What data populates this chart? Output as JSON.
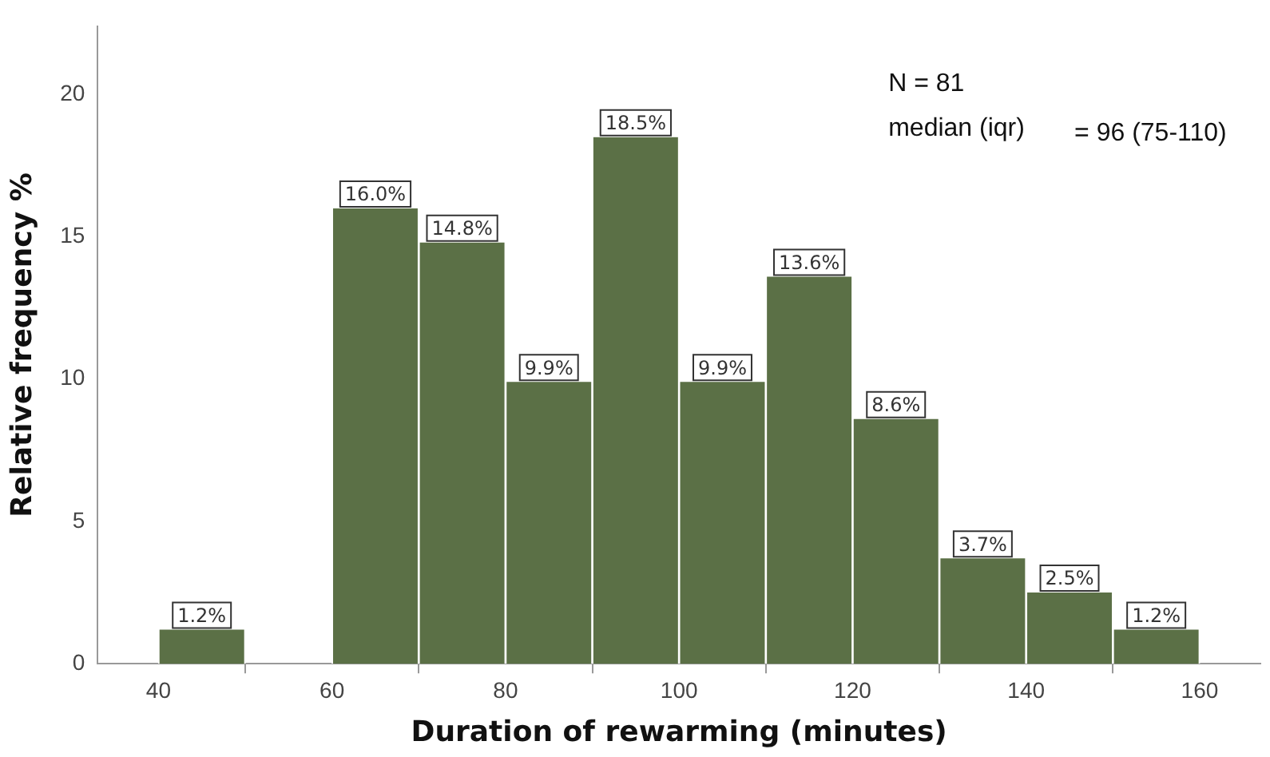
{
  "chart_data": {
    "type": "histogram",
    "xlabel": "Duration of rewarming (minutes)",
    "ylabel": "Relative frequency %",
    "bins": [
      40,
      50,
      60,
      70,
      80,
      90,
      100,
      110,
      120,
      130,
      140,
      150,
      160
    ],
    "values": [
      1.2,
      0,
      16.0,
      14.8,
      9.9,
      18.5,
      9.9,
      13.6,
      8.6,
      3.7,
      2.5,
      1.2
    ],
    "value_labels": [
      "1.2%",
      null,
      "16.0%",
      "14.8%",
      "9.9%",
      "18.5%",
      "9.9%",
      "13.6%",
      "8.6%",
      "3.7%",
      "2.5%",
      "1.2%"
    ],
    "color": "#5b7046",
    "xlim": [
      33,
      167
    ],
    "xticks": [
      40,
      60,
      80,
      100,
      120,
      140,
      160
    ],
    "ylim": [
      0,
      22.4
    ],
    "yticks": [
      0,
      5,
      10,
      15,
      20
    ],
    "grid": false,
    "annotations": [
      "N = 81",
      "median (iqr)",
      "= 96 (75-110)"
    ]
  }
}
